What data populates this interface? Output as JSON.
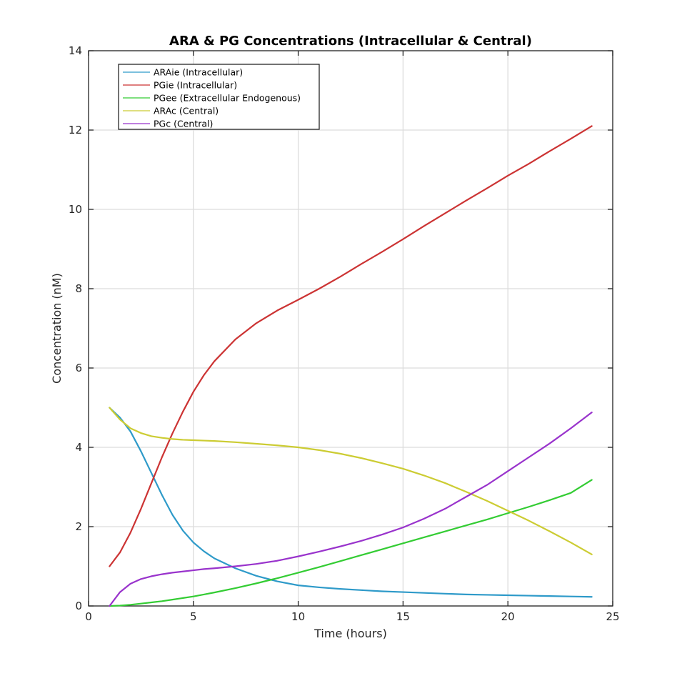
{
  "chart_data": {
    "type": "line",
    "title": "ARA & PG Concentrations (Intracellular & Central)",
    "xlabel": "Time (hours)",
    "ylabel": "Concentration (nM)",
    "xlim": [
      0,
      25
    ],
    "ylim": [
      0,
      14
    ],
    "xticks": [
      0,
      5,
      10,
      15,
      20,
      25
    ],
    "yticks": [
      0,
      2,
      4,
      6,
      8,
      10,
      12,
      14
    ],
    "grid": true,
    "legend_position": "top-left",
    "x": [
      1,
      1.5,
      2,
      2.5,
      3,
      3.5,
      4,
      4.5,
      5,
      5.5,
      6,
      7,
      8,
      9,
      10,
      11,
      12,
      13,
      14,
      15,
      16,
      17,
      18,
      19,
      20,
      21,
      22,
      23,
      24
    ],
    "series": [
      {
        "name": "ARAie (Intracellular)",
        "color": "#2e9ac9",
        "values": [
          5.0,
          4.75,
          4.4,
          3.9,
          3.35,
          2.8,
          2.3,
          1.9,
          1.6,
          1.38,
          1.2,
          0.95,
          0.76,
          0.62,
          0.52,
          0.47,
          0.43,
          0.4,
          0.37,
          0.35,
          0.33,
          0.31,
          0.29,
          0.28,
          0.27,
          0.26,
          0.25,
          0.24,
          0.23
        ]
      },
      {
        "name": "PGie (Intracellular)",
        "color": "#cc3333",
        "values": [
          1.0,
          1.35,
          1.85,
          2.45,
          3.1,
          3.75,
          4.35,
          4.9,
          5.4,
          5.82,
          6.17,
          6.72,
          7.13,
          7.45,
          7.72,
          8.0,
          8.3,
          8.62,
          8.93,
          9.25,
          9.58,
          9.9,
          10.22,
          10.53,
          10.85,
          11.15,
          11.47,
          11.78,
          12.1
        ]
      },
      {
        "name": "PGee (Extracellular Endogenous)",
        "color": "#33cc33",
        "values": [
          0.0,
          0.01,
          0.03,
          0.06,
          0.09,
          0.12,
          0.16,
          0.2,
          0.24,
          0.29,
          0.34,
          0.45,
          0.57,
          0.7,
          0.84,
          0.98,
          1.13,
          1.28,
          1.43,
          1.58,
          1.73,
          1.88,
          2.03,
          2.18,
          2.34,
          2.5,
          2.67,
          2.85,
          3.18
        ]
      },
      {
        "name": "ARAc (Central)",
        "color": "#cccc33",
        "values": [
          5.0,
          4.7,
          4.48,
          4.36,
          4.28,
          4.24,
          4.21,
          4.19,
          4.18,
          4.17,
          4.16,
          4.13,
          4.09,
          4.05,
          4.0,
          3.93,
          3.84,
          3.73,
          3.6,
          3.46,
          3.29,
          3.1,
          2.88,
          2.65,
          2.4,
          2.15,
          1.88,
          1.6,
          1.3
        ]
      },
      {
        "name": "PGc (Central)",
        "color": "#9933cc",
        "values": [
          0.0,
          0.35,
          0.56,
          0.68,
          0.75,
          0.8,
          0.84,
          0.87,
          0.9,
          0.93,
          0.95,
          1.0,
          1.06,
          1.14,
          1.25,
          1.37,
          1.5,
          1.64,
          1.8,
          1.98,
          2.2,
          2.45,
          2.75,
          3.05,
          3.4,
          3.75,
          4.1,
          4.48,
          4.88
        ]
      }
    ]
  }
}
